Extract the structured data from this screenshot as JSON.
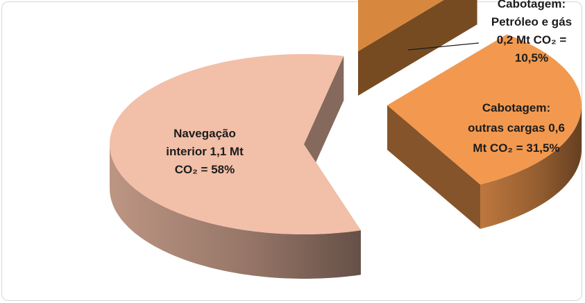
{
  "chart_data": {
    "type": "pie",
    "style": "3d-exploded",
    "title": "",
    "legend": "none",
    "slices": [
      {
        "name": "Navegação interior",
        "value": 58,
        "color": "#f2bfa8",
        "label_lines": [
          "Navegação",
          "interior  1,1 Mt",
          "CO₂ = 58%"
        ]
      },
      {
        "name": "Cabotagem: Petróleo e gás",
        "value": 10.5,
        "color": "#d8883e",
        "label_lines": [
          "Cabotagem:",
          "Petróleo  e gás",
          "0,2 Mt CO₂ =",
          "10,5%"
        ]
      },
      {
        "name": "Cabotagem: outras cargas",
        "value": 31.5,
        "color": "#f2994f",
        "label_lines": [
          "Cabotagem:",
          "outras cargas  0,6",
          "Mt CO₂ = 31,5%"
        ]
      }
    ]
  }
}
